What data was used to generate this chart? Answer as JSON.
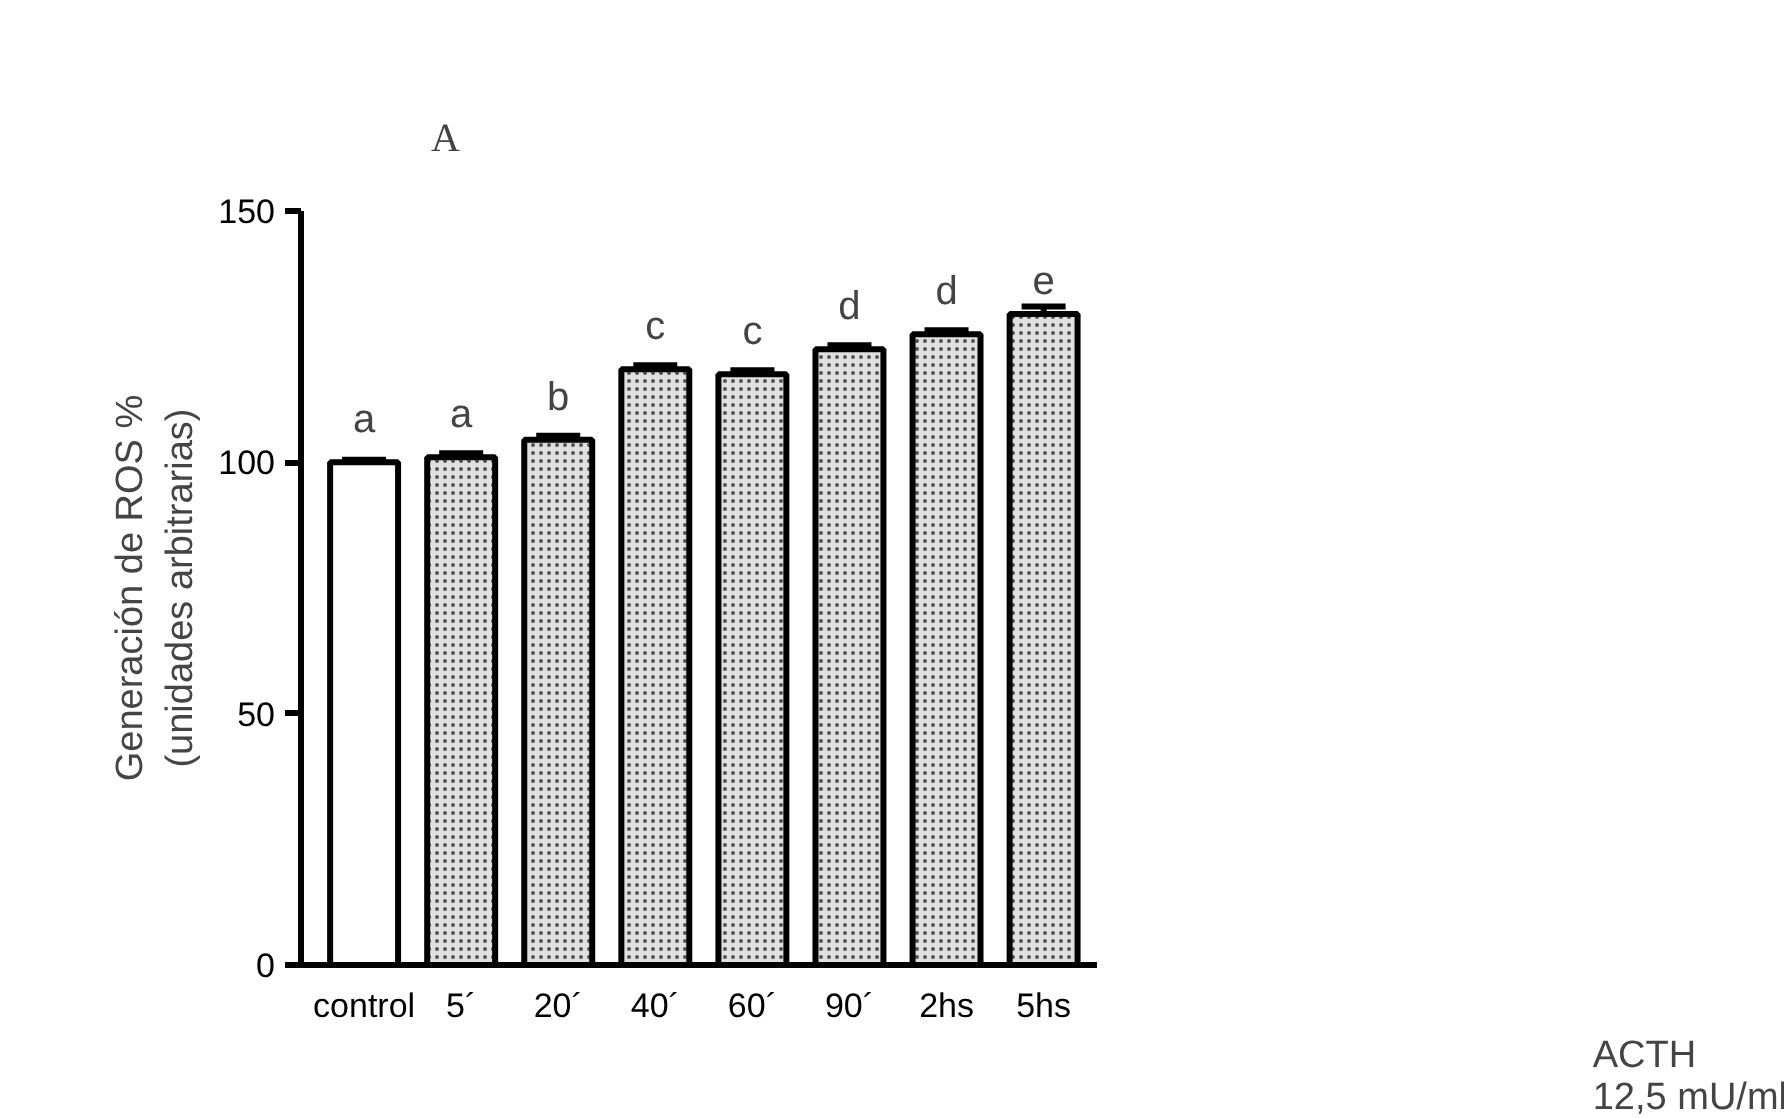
{
  "chart_data": {
    "type": "bar",
    "categories": [
      "control",
      "5´",
      "20´",
      "40´",
      "60´",
      "90´",
      "2hs",
      "5hs"
    ],
    "values": [
      100,
      101,
      104.5,
      118.5,
      117.5,
      122.5,
      125.5,
      129.5
    ],
    "errors": [
      0.5,
      0.8,
      0.8,
      0.8,
      0.8,
      0.8,
      0.8,
      1.5
    ],
    "colors": [
      "#ffffff",
      "#e0e0e0",
      "#e0e0e0",
      "#e0e0e0",
      "#e0e0e0",
      "#e0e0e0",
      "#e0e0e0",
      "#e0e0e0"
    ],
    "ylabel": "Generación de ROS %\n(unidades arbitrarias)",
    "ylim": [
      0,
      150
    ],
    "yticks": [
      0,
      50,
      100,
      150
    ],
    "grid": false,
    "annotations": [
      "A",
      "ACTH\n12,5 mU/ml",
      {
        "text": "a",
        "x": "control",
        "y": 100
      },
      {
        "text": "a",
        "x": "5´",
        "y": 101
      },
      {
        "text": "b",
        "x": "20´",
        "y": 104.5
      },
      {
        "text": "c",
        "x": "40´",
        "y": 118.5
      },
      {
        "text": "c",
        "x": "60´",
        "y": 117.5
      },
      {
        "text": "d",
        "x": "90´",
        "y": 122.5
      },
      {
        "text": "d",
        "x": "2hs",
        "y": 125.5
      },
      {
        "text": "e",
        "x": "5hs",
        "y": 129.5
      }
    ]
  }
}
